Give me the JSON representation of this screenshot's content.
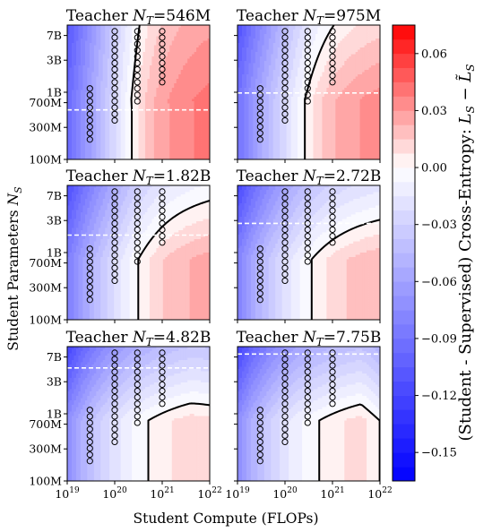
{
  "chart_data": {
    "type": "heatmap",
    "xlabel": "Student Compute (FLOPs)",
    "ylabel": "Student Parameters N_S",
    "colorbar_label": "(Student - Supervised) Cross-Entropy: L_S − L̃_S",
    "x_scale": "log",
    "y_scale": "log",
    "xlim": [
      1e+19,
      1e+22
    ],
    "ylim": [
      100000000.0,
      10000000000.0
    ],
    "x_ticks": [
      "10^19",
      "10^20",
      "10^21",
      "10^22"
    ],
    "y_ticks": [
      "100M",
      "300M",
      "700M",
      "1B",
      "3B",
      "7B"
    ],
    "colorbar": {
      "range": [
        -0.165,
        0.075
      ],
      "ticks": [
        "0.06",
        "0.03",
        "0.00",
        "−0.03",
        "−0.06",
        "−0.09",
        "−0.12",
        "−0.15"
      ],
      "tick_values": [
        0.06,
        0.03,
        0.0,
        -0.03,
        -0.06,
        -0.09,
        -0.12,
        -0.15
      ],
      "cmap": "bwr"
    },
    "panels": [
      {
        "title": "Teacher N_T=546M",
        "teacher_params": 546000000.0,
        "dashed_y": 546000000.0
      },
      {
        "title": "Teacher N_T=975M",
        "teacher_params": 975000000.0,
        "dashed_y": 975000000.0
      },
      {
        "title": "Teacher N_T=1.82B",
        "teacher_params": 1820000000.0,
        "dashed_y": 1820000000.0
      },
      {
        "title": "Teacher N_T=2.72B",
        "teacher_params": 2720000000.0,
        "dashed_y": 2720000000.0
      },
      {
        "title": "Teacher N_T=4.82B",
        "teacher_params": 4820000000.0,
        "dashed_y": 4820000000.0
      },
      {
        "title": "Teacher N_T=7.75B",
        "teacher_params": 7750000000.0,
        "dashed_y": 7750000000.0
      }
    ],
    "sample_compute": [
      3e+19,
      1e+20,
      3e+20,
      1e+21
    ],
    "sample_params": [
      198000000.0,
      246000000.0,
      306000000.0,
      381000000.0,
      474000000.0,
      590000000.0,
      734000000.0,
      913000000.0,
      1140000000.0,
      1410000000.0,
      1760000000.0,
      2190000000.0,
      2720000000.0,
      3390000000.0,
      4210000000.0,
      5240000000.0,
      6520000000.0,
      8100000000.0
    ],
    "sample_min_params": [
      198000000.0,
      350000000.0,
      650000000.0,
      1200000000.0
    ]
  }
}
